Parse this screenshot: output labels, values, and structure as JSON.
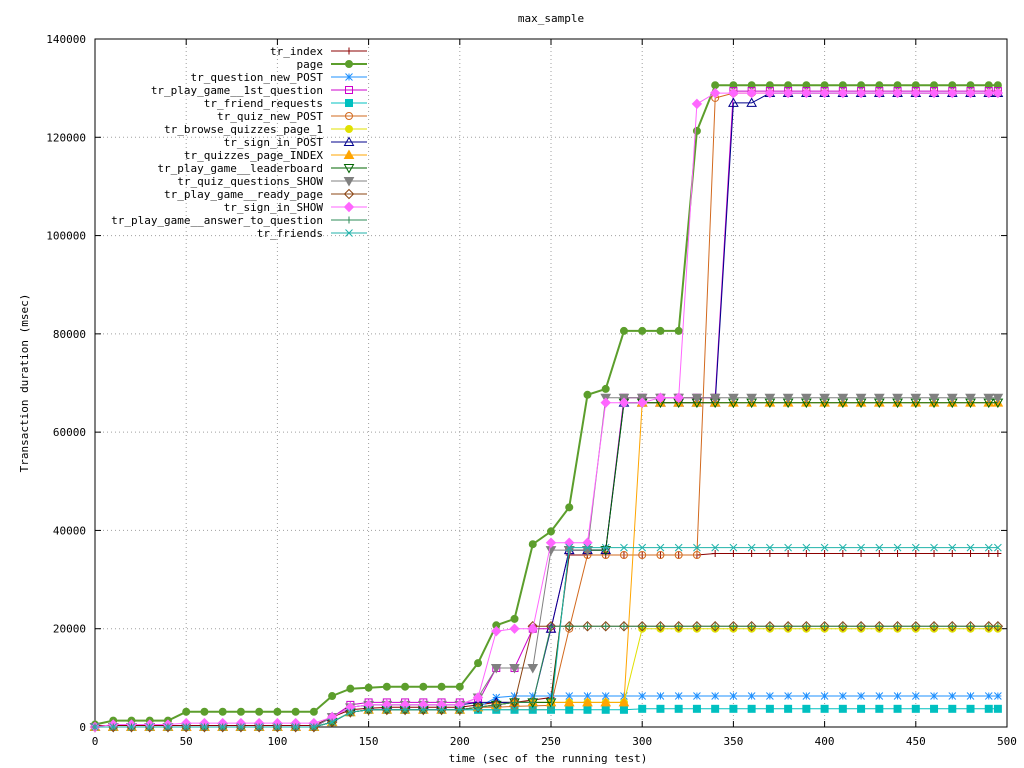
{
  "chart_data": {
    "type": "line",
    "title": "max_sample",
    "xlabel": "time (sec of the running test)",
    "ylabel": "Transaction duration (msec)",
    "xlim": [
      0,
      500
    ],
    "ylim": [
      0,
      140000
    ],
    "xticks": [
      0,
      50,
      100,
      150,
      200,
      250,
      300,
      350,
      400,
      450,
      500
    ],
    "yticks": [
      0,
      20000,
      40000,
      60000,
      80000,
      100000,
      120000,
      140000
    ],
    "grid": true,
    "legend_position": "top-left",
    "x": [
      0,
      10,
      20,
      30,
      40,
      50,
      60,
      70,
      80,
      90,
      100,
      110,
      120,
      130,
      140,
      150,
      160,
      170,
      180,
      190,
      200,
      210,
      220,
      230,
      240,
      250,
      260,
      270,
      280,
      290,
      300,
      310,
      320,
      330,
      340,
      350,
      360,
      370,
      380,
      390,
      400,
      410,
      420,
      430,
      440,
      450,
      460,
      470,
      480,
      490,
      495
    ],
    "series": [
      {
        "name": "tr_index",
        "color": "#8b0000",
        "marker": "plus",
        "values": [
          300,
          300,
          300,
          300,
          300,
          300,
          300,
          300,
          300,
          300,
          300,
          300,
          300,
          2000,
          3500,
          3800,
          4000,
          4000,
          4000,
          4000,
          4000,
          4500,
          5000,
          5000,
          5500,
          6000,
          35000,
          35000,
          35000,
          35000,
          35000,
          35000,
          35000,
          35000,
          35300,
          35300,
          35300,
          35300,
          35300,
          35300,
          35300,
          35300,
          35300,
          35300,
          35300,
          35300,
          35300,
          35300,
          35300,
          35300,
          35300
        ]
      },
      {
        "name": "page",
        "color": "#5c9e2c",
        "marker": "filled-circle",
        "values": [
          500,
          1300,
          1300,
          1300,
          1300,
          3100,
          3100,
          3100,
          3100,
          3100,
          3100,
          3100,
          3100,
          6300,
          7800,
          8000,
          8200,
          8200,
          8200,
          8200,
          8200,
          13000,
          20700,
          22000,
          37200,
          39800,
          44700,
          67600,
          68800,
          80600,
          80600,
          80600,
          80600,
          121300,
          130600,
          130600,
          130600,
          130600,
          130600,
          130600,
          130600,
          130600,
          130600,
          130600,
          130600,
          130600,
          130600,
          130600,
          130600,
          130600,
          130600
        ]
      },
      {
        "name": "tr_question_new_POST",
        "color": "#1e90ff",
        "marker": "star",
        "values": [
          0,
          0,
          0,
          0,
          0,
          0,
          0,
          0,
          0,
          0,
          0,
          0,
          0,
          1000,
          3000,
          3500,
          3500,
          3500,
          3500,
          3500,
          3500,
          4000,
          6000,
          6300,
          6300,
          6300,
          6300,
          6300,
          6300,
          6300,
          6300,
          6300,
          6300,
          6300,
          6300,
          6300,
          6300,
          6300,
          6300,
          6300,
          6300,
          6300,
          6300,
          6300,
          6300,
          6300,
          6300,
          6300,
          6300,
          6300,
          6300
        ]
      },
      {
        "name": "tr_play_game__1st_question",
        "color": "#cc00cc",
        "marker": "square",
        "values": [
          0,
          0,
          0,
          0,
          0,
          0,
          0,
          0,
          0,
          0,
          0,
          0,
          0,
          2000,
          4500,
          5000,
          5000,
          5000,
          5000,
          5000,
          5000,
          5000,
          12000,
          12000,
          20000,
          20000,
          36000,
          36000,
          36000,
          67000,
          67000,
          67000,
          67000,
          67000,
          67000,
          129400,
          129400,
          129400,
          129400,
          129400,
          129400,
          129400,
          129400,
          129400,
          129400,
          129400,
          129400,
          129400,
          129400,
          129400,
          129400
        ]
      },
      {
        "name": "tr_friend_requests",
        "color": "#00c0c0",
        "marker": "filled-square",
        "values": [
          0,
          0,
          0,
          0,
          0,
          0,
          0,
          0,
          0,
          0,
          0,
          0,
          0,
          1000,
          3000,
          3500,
          3500,
          3500,
          3500,
          3500,
          3500,
          3500,
          3500,
          3500,
          3500,
          3500,
          3500,
          3500,
          3500,
          3500,
          3700,
          3700,
          3700,
          3700,
          3700,
          3700,
          3700,
          3700,
          3700,
          3700,
          3700,
          3700,
          3700,
          3700,
          3700,
          3700,
          3700,
          3700,
          3700,
          3700,
          3700
        ]
      },
      {
        "name": "tr_quiz_new_POST",
        "color": "#d2691e",
        "marker": "circle",
        "values": [
          0,
          0,
          0,
          0,
          0,
          0,
          0,
          0,
          0,
          0,
          0,
          0,
          0,
          1000,
          3000,
          3500,
          3500,
          3500,
          3500,
          3500,
          3500,
          4000,
          4000,
          4200,
          4300,
          4400,
          20000,
          35000,
          35000,
          35000,
          35000,
          35000,
          35000,
          35000,
          128000,
          129000,
          129000,
          129000,
          129000,
          129000,
          129000,
          129000,
          129000,
          129000,
          129000,
          129000,
          129000,
          129000,
          129000,
          129000,
          129000
        ]
      },
      {
        "name": "tr_browse_quizzes_page_1",
        "color": "#e0e000",
        "marker": "filled-circle",
        "values": [
          0,
          0,
          0,
          0,
          0,
          0,
          0,
          0,
          0,
          0,
          0,
          0,
          0,
          1000,
          3000,
          3500,
          3500,
          3500,
          3500,
          3500,
          3500,
          4000,
          4500,
          5000,
          5000,
          5000,
          5000,
          5000,
          5000,
          5000,
          20000,
          20000,
          20000,
          20000,
          20000,
          20000,
          20000,
          20000,
          20000,
          20000,
          20000,
          20000,
          20000,
          20000,
          20000,
          20000,
          20000,
          20000,
          20000,
          20000,
          20000
        ]
      },
      {
        "name": "tr_sign_in_POST",
        "color": "#00008b",
        "marker": "triangle",
        "values": [
          0,
          0,
          0,
          0,
          0,
          0,
          0,
          0,
          0,
          0,
          0,
          0,
          0,
          2000,
          4000,
          4500,
          4500,
          4500,
          4500,
          4500,
          4500,
          5000,
          5000,
          5000,
          5000,
          20000,
          36000,
          36000,
          36000,
          66000,
          66000,
          66000,
          66000,
          66000,
          66000,
          127000,
          127000,
          129000,
          129000,
          129000,
          129000,
          129000,
          129000,
          129000,
          129000,
          129000,
          129000,
          129000,
          129000,
          129000,
          129000
        ]
      },
      {
        "name": "tr_quizzes_page_INDEX",
        "color": "#ffa500",
        "marker": "filled-triangle",
        "values": [
          0,
          0,
          0,
          0,
          0,
          0,
          0,
          0,
          0,
          0,
          0,
          0,
          0,
          1000,
          3000,
          3500,
          3500,
          3500,
          3500,
          3500,
          3500,
          4000,
          4500,
          5000,
          5000,
          5000,
          5000,
          5000,
          5000,
          5000,
          66000,
          66000,
          66000,
          66000,
          66000,
          66000,
          66000,
          66000,
          66000,
          66000,
          66000,
          66000,
          66000,
          66000,
          66000,
          66000,
          66000,
          66000,
          66000,
          66000,
          66000
        ]
      },
      {
        "name": "tr_play_game__leaderboard",
        "color": "#006400",
        "marker": "inv-triangle",
        "values": [
          0,
          0,
          0,
          0,
          0,
          0,
          0,
          0,
          0,
          0,
          0,
          0,
          0,
          1000,
          3000,
          3500,
          3500,
          3500,
          3500,
          3500,
          3500,
          4000,
          4500,
          5000,
          5000,
          5000,
          36000,
          36000,
          36000,
          66000,
          66000,
          66000,
          66000,
          66000,
          66000,
          66000,
          66000,
          66000,
          66000,
          66000,
          66000,
          66000,
          66000,
          66000,
          66000,
          66000,
          66000,
          66000,
          66000,
          66000,
          66000
        ]
      },
      {
        "name": "tr_quiz_questions_SHOW",
        "color": "#808080",
        "marker": "filled-inv-triangle",
        "values": [
          0,
          0,
          0,
          0,
          0,
          0,
          0,
          0,
          0,
          0,
          0,
          0,
          0,
          2000,
          4000,
          4500,
          4500,
          4500,
          4500,
          4500,
          4500,
          6000,
          12000,
          12000,
          12000,
          36000,
          36000,
          36000,
          67000,
          67000,
          67000,
          67000,
          67000,
          67000,
          67000,
          67000,
          67000,
          67000,
          67000,
          67000,
          67000,
          67000,
          67000,
          67000,
          67000,
          67000,
          67000,
          67000,
          67000,
          67000,
          67000
        ]
      },
      {
        "name": "tr_play_game__ready_page",
        "color": "#8b4513",
        "marker": "diamond",
        "values": [
          0,
          0,
          0,
          0,
          0,
          0,
          0,
          0,
          0,
          0,
          0,
          0,
          0,
          1000,
          3000,
          3500,
          3500,
          3500,
          3500,
          3500,
          3500,
          4000,
          4500,
          5000,
          20500,
          20500,
          20500,
          20500,
          20500,
          20500,
          20500,
          20500,
          20500,
          20500,
          20500,
          20500,
          20500,
          20500,
          20500,
          20500,
          20500,
          20500,
          20500,
          20500,
          20500,
          20500,
          20500,
          20500,
          20500,
          20500,
          20500
        ]
      },
      {
        "name": "tr_sign_in_SHOW",
        "color": "#ff66ff",
        "marker": "filled-diamond",
        "values": [
          0,
          500,
          500,
          500,
          500,
          800,
          800,
          800,
          800,
          800,
          800,
          800,
          800,
          2000,
          4000,
          4500,
          4500,
          4500,
          4500,
          4500,
          4500,
          6000,
          19500,
          20000,
          20000,
          37500,
          37500,
          37500,
          66000,
          66000,
          66000,
          67000,
          67000,
          126800,
          129000,
          129000,
          129000,
          129000,
          129000,
          129000,
          129000,
          129000,
          129000,
          129000,
          129000,
          129000,
          129000,
          129000,
          129000,
          129000,
          129000
        ]
      },
      {
        "name": "tr_play_game__answer_to_question",
        "color": "#2e8b57",
        "marker": "plus",
        "values": [
          0,
          0,
          0,
          0,
          0,
          0,
          0,
          0,
          0,
          0,
          0,
          0,
          0,
          1000,
          3000,
          3500,
          3500,
          3500,
          3500,
          3500,
          3500,
          4000,
          4500,
          5000,
          5000,
          20500,
          20500,
          20500,
          20500,
          20500,
          20500,
          20500,
          20500,
          20500,
          20500,
          20500,
          20500,
          20500,
          20500,
          20500,
          20500,
          20500,
          20500,
          20500,
          20500,
          20500,
          20500,
          20500,
          20500,
          20500,
          20500
        ]
      },
      {
        "name": "tr_friends",
        "color": "#20b2aa",
        "marker": "cross",
        "values": [
          0,
          0,
          0,
          0,
          0,
          0,
          0,
          0,
          0,
          0,
          0,
          0,
          0,
          1000,
          3000,
          3500,
          3500,
          3500,
          3500,
          3500,
          3500,
          3500,
          3500,
          3500,
          3500,
          3500,
          36500,
          36500,
          36500,
          36500,
          36500,
          36500,
          36500,
          36500,
          36500,
          36500,
          36500,
          36500,
          36500,
          36500,
          36500,
          36500,
          36500,
          36500,
          36500,
          36500,
          36500,
          36500,
          36500,
          36500,
          36500
        ]
      }
    ]
  }
}
